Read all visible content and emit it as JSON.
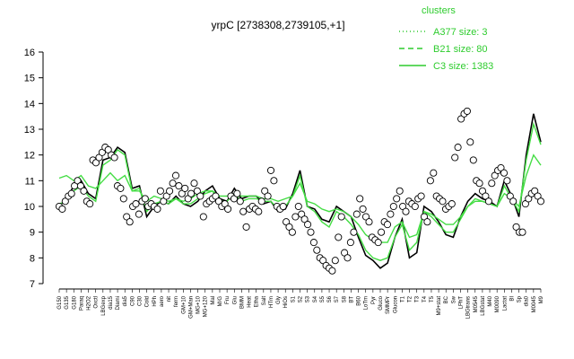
{
  "chart_data": {
    "type": "line",
    "title": "yrpC [2738308,2739105,+1]",
    "ylim": [
      7,
      16
    ],
    "yticks": [
      7,
      8,
      9,
      10,
      11,
      12,
      13,
      14,
      15,
      16
    ],
    "grid": false,
    "legend": {
      "title": "clusters",
      "placement": "top-right",
      "entries": [
        {
          "label": "A377 size: 3",
          "style": "dotted"
        },
        {
          "label": "B21 size: 80",
          "style": "dashed"
        },
        {
          "label": "C3 size: 1383",
          "style": "solid"
        }
      ]
    },
    "x_labels": [
      "G150",
      "G135",
      "G180",
      "Paraq",
      "H2O2",
      "Oxctl",
      "LBGexp",
      "dia15",
      "Diami",
      "dia5",
      "C90",
      "C30",
      "Cold",
      "HPh",
      "aero",
      "nit",
      "ferm",
      "GM+10",
      "GM+Man",
      "MG+10",
      "MG+120",
      "Mal",
      "M/G",
      "Fru",
      "Glu",
      "BMM",
      "Heat",
      "Etha",
      "Salt",
      "HTm",
      "Gly",
      "HiOs",
      "S1",
      "S2",
      "S3",
      "S4",
      "S5",
      "S6",
      "S7",
      "S8",
      "BT",
      "B60",
      "LoTm",
      "Pyr",
      "Gluco",
      "SMMPr",
      "Glucon",
      "T1",
      "T2",
      "T3",
      "T4",
      "T5",
      "M9+stat",
      "BC",
      "Sw",
      "LPhT",
      "LBGtrans",
      "M0545",
      "LBGstat",
      "M40",
      "M0090",
      "Lactat",
      "BI",
      "Sp",
      "dia0",
      "M0045",
      "M9"
    ],
    "series": [
      {
        "values": [
          10.0,
          10.3,
          10.8,
          11.0,
          10.5,
          10.3,
          11.8,
          11.9,
          12.3,
          12.1,
          10.7,
          10.8,
          9.6,
          10.0,
          10.2,
          10.1,
          10.4,
          10.1,
          10.0,
          10.2,
          10.6,
          10.8,
          10.3,
          10.2,
          10.7,
          10.3,
          10.4,
          10.4,
          10.1,
          10.2,
          9.8,
          9.9,
          10.5,
          11.4,
          10.0,
          9.9,
          9.5,
          9.4,
          10.0,
          9.8,
          9.6,
          8.8,
          8.1,
          7.9,
          7.6,
          7.8,
          8.8,
          9.5,
          8.0,
          8.2,
          10.0,
          9.8,
          9.4,
          8.9,
          8.8,
          9.6,
          10.2,
          10.5,
          10.3,
          10.2,
          10.0,
          11.0,
          10.4,
          9.6,
          12.0,
          13.6,
          12.5
        ]
      },
      {
        "values": [
          10.1,
          10.2,
          10.6,
          10.8,
          10.4,
          10.2,
          11.6,
          11.8,
          12.2,
          12.0,
          10.6,
          10.7,
          9.8,
          10.1,
          10.2,
          10.1,
          10.3,
          10.1,
          10.1,
          10.3,
          10.5,
          10.6,
          10.2,
          10.2,
          10.5,
          10.2,
          10.3,
          10.3,
          10.2,
          10.2,
          9.9,
          10.0,
          10.4,
          11.2,
          10.0,
          9.8,
          9.4,
          9.2,
          9.8,
          9.6,
          9.3,
          8.9,
          8.3,
          8.0,
          7.9,
          8.0,
          8.8,
          9.3,
          8.3,
          8.6,
          9.8,
          9.6,
          9.3,
          9.0,
          9.0,
          9.5,
          10.0,
          10.3,
          10.2,
          10.1,
          10.0,
          10.8,
          10.3,
          9.8,
          11.8,
          13.2,
          12.4
        ]
      },
      {
        "values": [
          11.1,
          11.2,
          11.0,
          11.2,
          10.8,
          10.7,
          11.0,
          11.3,
          11.0,
          11.2,
          10.6,
          10.6,
          10.2,
          10.4,
          10.3,
          10.2,
          10.3,
          10.2,
          10.3,
          10.5,
          10.6,
          10.6,
          10.4,
          10.4,
          10.5,
          10.4,
          10.4,
          10.4,
          10.3,
          10.3,
          10.2,
          10.3,
          10.4,
          10.9,
          10.2,
          10.1,
          9.9,
          9.8,
          9.9,
          9.8,
          9.6,
          9.3,
          8.9,
          8.7,
          8.6,
          8.6,
          9.2,
          9.4,
          8.8,
          8.9,
          9.8,
          9.7,
          9.5,
          9.3,
          9.3,
          9.6,
          10.0,
          10.2,
          10.2,
          10.1,
          10.0,
          10.5,
          10.3,
          10.0,
          11.2,
          12.0,
          11.6
        ]
      }
    ],
    "points": [
      10.0,
      9.9,
      10.2,
      10.4,
      10.5,
      10.8,
      11.0,
      10.8,
      10.6,
      10.2,
      10.1,
      11.8,
      11.7,
      11.9,
      12.1,
      12.3,
      12.2,
      12.0,
      11.9,
      10.8,
      10.7,
      10.3,
      9.6,
      9.4,
      10.0,
      10.1,
      9.7,
      10.2,
      10.3,
      10.0,
      10.1,
      10.0,
      9.9,
      10.6,
      10.2,
      10.4,
      10.6,
      10.9,
      11.2,
      10.8,
      10.5,
      10.7,
      10.3,
      10.5,
      10.9,
      10.6,
      10.4,
      9.6,
      10.1,
      10.2,
      10.3,
      10.4,
      10.2,
      10.0,
      10.1,
      9.9,
      10.4,
      10.3,
      10.5,
      10.2,
      9.8,
      9.2,
      9.9,
      10.0,
      9.9,
      9.8,
      10.2,
      10.6,
      10.4,
      11.4,
      11.0,
      10.0,
      9.9,
      10.0,
      9.4,
      9.2,
      9.0,
      9.6,
      10.0,
      9.7,
      9.5,
      9.3,
      9.0,
      8.6,
      8.3,
      8.0,
      7.9,
      7.7,
      7.6,
      7.5,
      7.9,
      8.8,
      9.6,
      8.2,
      8.0,
      8.6,
      9.0,
      9.7,
      10.3,
      9.9,
      9.6,
      9.4,
      8.8,
      8.7,
      8.6,
      9.0,
      9.4,
      9.3,
      9.7,
      10.0,
      10.3,
      10.6,
      10.0,
      9.8,
      10.2,
      10.1,
      10.0,
      10.3,
      10.4,
      9.6,
      9.4,
      11.0,
      11.3,
      10.4,
      10.3,
      10.2,
      9.9,
      10.0,
      10.1,
      11.9,
      12.3,
      13.4,
      13.6,
      13.7,
      12.5,
      11.8,
      11.0,
      10.9,
      10.6,
      10.4,
      10.2,
      10.9,
      11.2,
      11.4,
      11.5,
      11.3,
      11.0,
      10.4,
      10.2,
      9.2,
      9.0,
      9.0,
      10.1,
      10.3,
      10.5,
      10.6,
      10.4,
      10.2
    ]
  }
}
